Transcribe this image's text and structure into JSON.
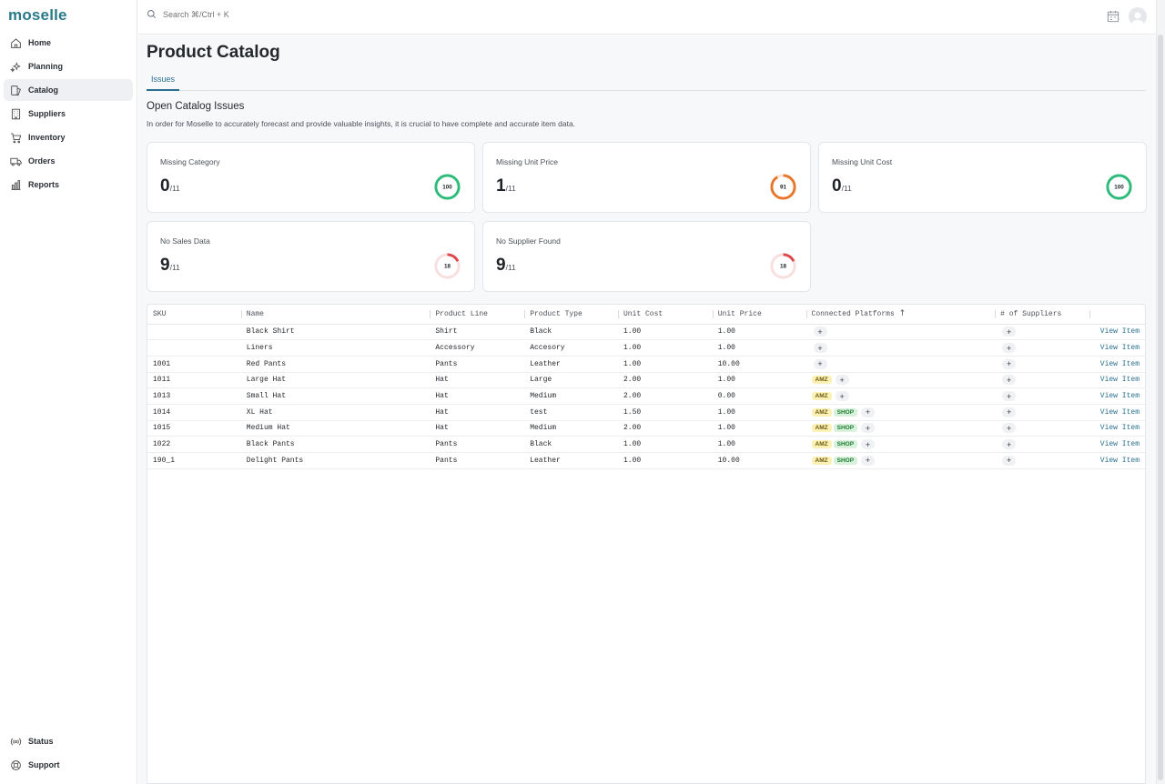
{
  "app": {
    "logo": "moselle"
  },
  "sidebar": {
    "items": [
      {
        "label": "Home",
        "icon": "home-icon"
      },
      {
        "label": "Planning",
        "icon": "sparkles-icon"
      },
      {
        "label": "Catalog",
        "icon": "catalog-icon",
        "active": true
      },
      {
        "label": "Suppliers",
        "icon": "building-icon"
      },
      {
        "label": "Inventory",
        "icon": "cart-icon"
      },
      {
        "label": "Orders",
        "icon": "truck-icon"
      },
      {
        "label": "Reports",
        "icon": "bar-chart-icon"
      }
    ],
    "bottom": [
      {
        "label": "Status",
        "icon": "broadcast-icon"
      },
      {
        "label": "Support",
        "icon": "lifebuoy-icon"
      }
    ]
  },
  "topbar": {
    "search_placeholder": "Search ⌘/Ctrl + K"
  },
  "main": {
    "title": "Product Catalog",
    "tab": "Issues",
    "section_title": "Open Catalog Issues",
    "section_desc": "In order for Moselle to accurately forecast and provide valuable insights, it is crucial to have complete and accurate item data."
  },
  "cards": [
    {
      "label": "Missing Category",
      "value": "0",
      "denominator": "/11",
      "score": "100",
      "score_pct": 100,
      "color": "#2dbb7a"
    },
    {
      "label": "Missing Unit Price",
      "value": "1",
      "denominator": "/11",
      "score": "91",
      "score_pct": 91,
      "color": "#e8762b"
    },
    {
      "label": "Missing Unit Cost",
      "value": "0",
      "denominator": "/11",
      "score": "100",
      "score_pct": 100,
      "color": "#2dbb7a"
    },
    {
      "label": "No Sales Data",
      "value": "9",
      "denominator": "/11",
      "score": "18",
      "score_pct": 18,
      "color": "#e0474c"
    },
    {
      "label": "No Supplier Found",
      "value": "9",
      "denominator": "/11",
      "score": "18",
      "score_pct": 18,
      "color": "#e0474c"
    }
  ],
  "table": {
    "columns": [
      "SKU",
      "Name",
      "Product Line",
      "Product Type",
      "Unit Cost",
      "Unit Price",
      "Connected Platforms",
      "# of Suppliers",
      ""
    ],
    "sort_indicator": "↑",
    "view_label": "View Item",
    "rows": [
      {
        "sku": "",
        "name": "Black Shirt",
        "line": "Shirt",
        "type": "Black",
        "cost": "1.00",
        "price": "1.00",
        "platforms": []
      },
      {
        "sku": "",
        "name": "Liners",
        "line": "Accessory",
        "type": "Accesory",
        "cost": "1.00",
        "price": "1.00",
        "platforms": []
      },
      {
        "sku": "1001",
        "name": "Red Pants",
        "line": "Pants",
        "type": "Leather",
        "cost": "1.00",
        "price": "10.00",
        "platforms": []
      },
      {
        "sku": "1011",
        "name": "Large Hat",
        "line": "Hat",
        "type": "Large",
        "cost": "2.00",
        "price": "1.00",
        "platforms": [
          "AMZ"
        ]
      },
      {
        "sku": "1013",
        "name": "Small Hat",
        "line": "Hat",
        "type": "Medium",
        "cost": "2.00",
        "price": "0.00",
        "platforms": [
          "AMZ"
        ]
      },
      {
        "sku": "1014",
        "name": "XL Hat",
        "line": "Hat",
        "type": "test",
        "cost": "1.50",
        "price": "1.00",
        "platforms": [
          "AMZ",
          "SHOP"
        ]
      },
      {
        "sku": "1015",
        "name": "Medium Hat",
        "line": "Hat",
        "type": "Medium",
        "cost": "2.00",
        "price": "1.00",
        "platforms": [
          "AMZ",
          "SHOP"
        ]
      },
      {
        "sku": "1022",
        "name": "Black Pants",
        "line": "Pants",
        "type": "Black",
        "cost": "1.00",
        "price": "1.00",
        "platforms": [
          "AMZ",
          "SHOP"
        ]
      },
      {
        "sku": "190_1",
        "name": "Delight Pants",
        "line": "Pants",
        "type": "Leather",
        "cost": "1.00",
        "price": "10.00",
        "platforms": [
          "AMZ",
          "SHOP"
        ]
      }
    ]
  }
}
